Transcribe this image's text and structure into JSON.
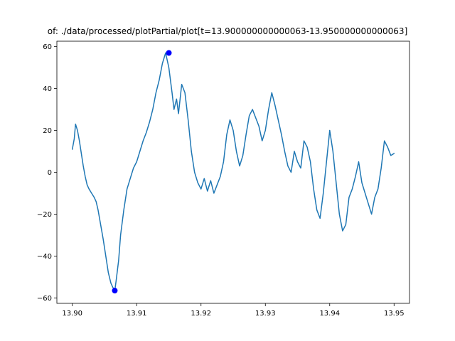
{
  "chart_data": {
    "type": "line",
    "title": "of: ./data/processed/plotPartial/plot[t=13.900000000000063-13.950000000000063]",
    "xlabel": "",
    "ylabel": "",
    "xlim": [
      13.8976,
      13.9524
    ],
    "ylim": [
      -62.6,
      62.6
    ],
    "x_ticks": [
      13.9,
      13.91,
      13.92,
      13.93,
      13.94,
      13.95
    ],
    "x_tick_labels": [
      "13.90",
      "13.91",
      "13.92",
      "13.93",
      "13.94",
      "13.95"
    ],
    "y_ticks": [
      -60,
      -40,
      -20,
      0,
      20,
      40,
      60
    ],
    "y_tick_labels": [
      "−60",
      "−40",
      "−20",
      "0",
      "20",
      "40",
      "60"
    ],
    "grid": false,
    "colors": {
      "line": "#1f77b4",
      "markers": "#0000ff"
    },
    "series": [
      {
        "x": [
          13.9,
          13.9003,
          13.9005,
          13.9008,
          13.9011,
          13.9014,
          13.9017,
          13.902,
          13.9023,
          13.9026,
          13.903,
          13.9034,
          13.9037,
          13.904,
          13.9044,
          13.9048,
          13.9052,
          13.9056,
          13.906,
          13.9063,
          13.9066,
          13.9068,
          13.9072,
          13.9075,
          13.908,
          13.9085,
          13.909,
          13.9095,
          13.91,
          13.9105,
          13.911,
          13.9115,
          13.912,
          13.9125,
          13.913,
          13.9135,
          13.914,
          13.9145,
          13.915,
          13.9155,
          13.9158,
          13.9162,
          13.9165,
          13.917,
          13.9175,
          13.918,
          13.9185,
          13.919,
          13.9195,
          13.92,
          13.9205,
          13.921,
          13.9215,
          13.922,
          13.9225,
          13.923,
          13.9235,
          13.924,
          13.9245,
          13.925,
          13.9255,
          13.926,
          13.9265,
          13.927,
          13.9275,
          13.928,
          13.9285,
          13.929,
          13.9295,
          13.93,
          13.9305,
          13.931,
          13.9315,
          13.932,
          13.9325,
          13.933,
          13.9335,
          13.934,
          13.9345,
          13.935,
          13.9355,
          13.936,
          13.9365,
          13.937,
          13.9375,
          13.938,
          13.9385,
          13.939,
          13.9395,
          13.94,
          13.9405,
          13.941,
          13.9415,
          13.942,
          13.9425,
          13.943,
          13.9435,
          13.944,
          13.9445,
          13.945,
          13.9455,
          13.946,
          13.9465,
          13.947,
          13.9475,
          13.948,
          13.9485,
          13.949,
          13.9495,
          13.95
        ],
        "y": [
          11,
          16,
          23,
          20,
          15,
          9,
          3,
          -2,
          -6,
          -8,
          -10,
          -12,
          -14,
          -18,
          -25,
          -32,
          -40,
          -48,
          -53,
          -55,
          -56.5,
          -52,
          -42,
          -30,
          -18,
          -8,
          -3,
          2,
          5,
          10,
          15,
          19,
          24,
          30,
          38,
          44,
          52,
          57,
          50,
          38,
          30,
          35,
          28,
          42,
          38,
          25,
          10,
          0,
          -5,
          -8,
          -3,
          -9,
          -4,
          -10,
          -6,
          -2,
          5,
          18,
          25,
          20,
          10,
          3,
          8,
          18,
          27,
          30,
          26,
          22,
          15,
          20,
          30,
          38,
          32,
          25,
          18,
          10,
          3,
          0,
          10,
          5,
          2,
          15,
          12,
          5,
          -8,
          -18,
          -22,
          -10,
          5,
          20,
          10,
          -5,
          -20,
          -28,
          -25,
          -12,
          -8,
          -2,
          5,
          -5,
          -10,
          -15,
          -20,
          -12,
          -8,
          2,
          15,
          12,
          8,
          9
        ]
      }
    ],
    "markers": [
      {
        "x": 13.915,
        "y": 57
      },
      {
        "x": 13.9066,
        "y": -56.5
      }
    ]
  }
}
